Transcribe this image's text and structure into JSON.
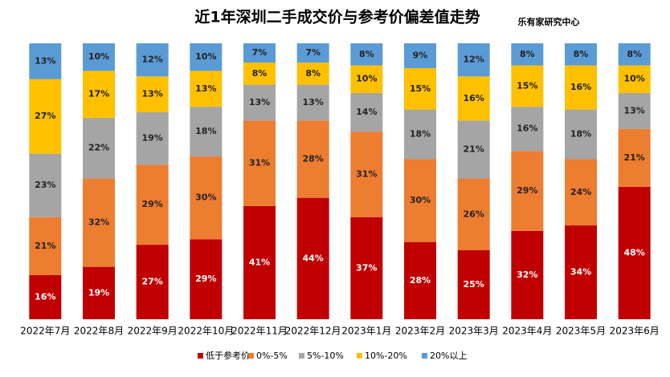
{
  "chart_data": {
    "type": "stacked_bar_100",
    "title": "近1年深圳二手成交价与参考价偏差值走势",
    "subtitle": "乐有家研究中心",
    "categories": [
      "2022年7月",
      "2022年8月",
      "2022年9月",
      "2022年10月",
      "2022年11月",
      "2022年12月",
      "2023年1月",
      "2023年2月",
      "2023年3月",
      "2023年4月",
      "2023年5月",
      "2023年6月"
    ],
    "series": [
      {
        "name": "低于参考价",
        "color": "#c00000",
        "values": [
          16,
          19,
          27,
          29,
          41,
          44,
          37,
          28,
          25,
          32,
          34,
          48
        ],
        "value_labels": [
          "16%",
          "19%",
          "27%",
          "29%",
          "41%",
          "44%",
          "37%",
          "28%",
          "25%",
          "32%",
          "34%",
          "48%"
        ]
      },
      {
        "name": "0%-5%",
        "color": "#ed7d31",
        "values": [
          21,
          32,
          29,
          30,
          31,
          28,
          31,
          30,
          26,
          29,
          24,
          21
        ],
        "value_labels": [
          "21%",
          "32%",
          "29%",
          "30%",
          "31%",
          "28%",
          "31%",
          "30%",
          "26%",
          "29%",
          "24%",
          "21%"
        ]
      },
      {
        "name": "5%-10%",
        "color": "#a5a5a5",
        "values": [
          23,
          22,
          19,
          18,
          13,
          13,
          14,
          18,
          21,
          16,
          18,
          13
        ],
        "value_labels": [
          "23%",
          "22%",
          "19%",
          "18%",
          "13%",
          "13%",
          "14%",
          "18%",
          "21%",
          "16%",
          "18%",
          "13%"
        ]
      },
      {
        "name": "10%-20%",
        "color": "#ffc000",
        "values": [
          27,
          17,
          13,
          13,
          8,
          8,
          10,
          15,
          16,
          15,
          16,
          10
        ],
        "value_labels": [
          "27%",
          "17%",
          "13%",
          "13%",
          "8%",
          "8%",
          "10%",
          "15%",
          "16%",
          "15%",
          "16%",
          "10%"
        ]
      },
      {
        "name": "20%以上",
        "color": "#5b9bd5",
        "values": [
          13,
          10,
          12,
          10,
          7,
          7,
          8,
          9,
          12,
          8,
          8,
          8
        ],
        "value_labels": [
          "13%",
          "10%",
          "12%",
          "10%",
          "7%",
          "7%",
          "8%",
          "9%",
          "12%",
          "8%",
          "8%",
          "8%"
        ]
      }
    ],
    "legend": "bottom"
  }
}
